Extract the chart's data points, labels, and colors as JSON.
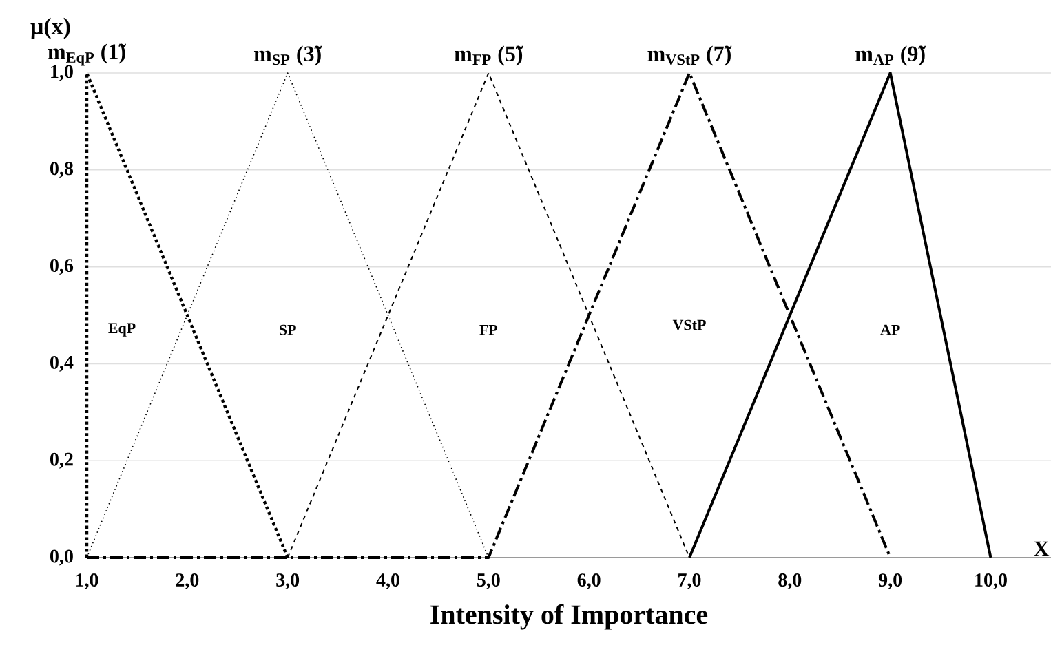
{
  "chart_data": {
    "type": "line",
    "xlabel": "Intensity of Importance",
    "ylabel": "μ(x)",
    "xlim": [
      1,
      10.6
    ],
    "ylim": [
      0,
      1
    ],
    "xticks": [
      {
        "value": 1,
        "label": "1,0"
      },
      {
        "value": 2,
        "label": "2,0"
      },
      {
        "value": 3,
        "label": "3,0"
      },
      {
        "value": 4,
        "label": "4,0"
      },
      {
        "value": 5,
        "label": "5,0"
      },
      {
        "value": 6,
        "label": "6,0"
      },
      {
        "value": 7,
        "label": "7,0"
      },
      {
        "value": 8,
        "label": "8,0"
      },
      {
        "value": 9,
        "label": "9,0"
      },
      {
        "value": 10,
        "label": "10,0"
      }
    ],
    "yticks": [
      {
        "value": 0,
        "label": "0,0"
      },
      {
        "value": 0.2,
        "label": "0,2"
      },
      {
        "value": 0.4,
        "label": "0,4"
      },
      {
        "value": 0.6,
        "label": "0,6"
      },
      {
        "value": 0.8,
        "label": "0,8"
      },
      {
        "value": 1,
        "label": "1,0"
      }
    ],
    "grid": "y",
    "marker": "none",
    "series": [
      {
        "color": "#000000",
        "line_style": "dotted",
        "x": [
          1,
          1,
          3
        ],
        "values": [
          0,
          1,
          0
        ]
      },
      {
        "color": "#000000",
        "line_style": "dotted",
        "x": [
          1,
          3,
          5
        ],
        "values": [
          0,
          1,
          0
        ]
      },
      {
        "color": "#000000",
        "line_style": "dashed",
        "x": [
          3,
          5,
          7
        ],
        "values": [
          0,
          1,
          0
        ]
      },
      {
        "color": "#000000",
        "line_style": "dashdot",
        "x": [
          1,
          5,
          7,
          9
        ],
        "values": [
          0,
          0,
          1,
          0
        ]
      },
      {
        "color": "#000000",
        "line_style": "solid",
        "x": [
          7,
          9,
          10
        ],
        "values": [
          0,
          1,
          0
        ]
      }
    ],
    "annotations": [
      {
        "text": "m$_{EqP}$ (1̃)",
        "x": 1,
        "y": 1
      },
      {
        "text": "m$_{SP}$ (3̃)",
        "x": 3,
        "y": 1
      },
      {
        "text": "m$_{FP}$ (5̃)",
        "x": 5,
        "y": 1
      },
      {
        "text": "m$_{VStP}$ (7̃)",
        "x": 7,
        "y": 1
      },
      {
        "text": "m$_{AP}$ (9̃)",
        "x": 9,
        "y": 1
      },
      {
        "text": "EqP",
        "x": 1.35,
        "y": 0.47
      },
      {
        "text": "SP",
        "x": 3,
        "y": 0.47
      },
      {
        "text": "FP",
        "x": 5,
        "y": 0.47
      },
      {
        "text": "VStP",
        "x": 7,
        "y": 0.48
      },
      {
        "text": "AP",
        "x": 9,
        "y": 0.47
      },
      "X"
    ]
  }
}
